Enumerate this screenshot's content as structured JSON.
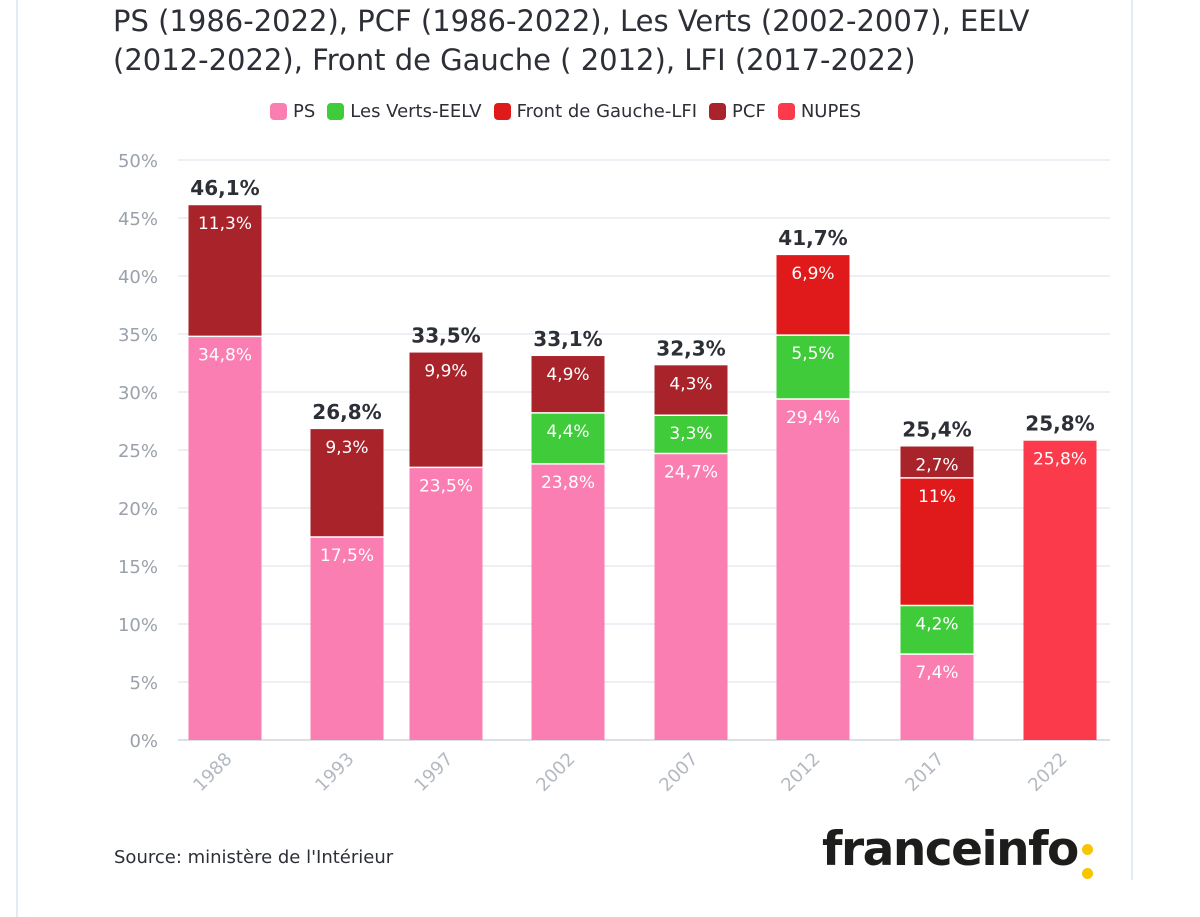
{
  "title": "PS (1986-2022), PCF (1986-2022), Les Verts (2002-2007), EELV (2012-2022), Front de Gauche ( 2012), LFI (2017-2022)",
  "source": "Source: ministère de l'Intérieur",
  "brand": "franceinfo",
  "chart_data": {
    "type": "stacked-bar",
    "title": "PS (1986-2022), PCF (1986-2022), Les Verts (2002-2007), EELV (2012-2022), Front de Gauche ( 2012), LFI (2017-2022)",
    "categories": [
      "1988",
      "1993",
      "1997",
      "2002",
      "2007",
      "2012",
      "2017",
      "2022"
    ],
    "ylim": [
      0,
      50
    ],
    "yticks": [
      0,
      5,
      10,
      15,
      20,
      25,
      30,
      35,
      40,
      45,
      50
    ],
    "ytick_labels": [
      "0%",
      "5%",
      "10%",
      "15%",
      "20%",
      "25%",
      "30%",
      "35%",
      "40%",
      "45%",
      "50%"
    ],
    "grid": true,
    "legend_position": "top-center",
    "series": [
      {
        "name": "PS",
        "color": "#fb7eb2",
        "values": [
          34.8,
          17.5,
          23.5,
          23.8,
          24.7,
          29.4,
          7.4,
          null
        ],
        "labels": [
          "34,8%",
          "17,5%",
          "23,5%",
          "23,8%",
          "24,7%",
          "29,4%",
          "7,4%",
          null
        ]
      },
      {
        "name": "Les Verts-EELV",
        "color": "#3fcb3a",
        "values": [
          null,
          null,
          null,
          4.4,
          3.3,
          5.5,
          4.2,
          null
        ],
        "labels": [
          null,
          null,
          null,
          "4,4%",
          "3,3%",
          "5,5%",
          "4,2%",
          null
        ]
      },
      {
        "name": "Front de Gauche-LFI",
        "color": "#e01a1a",
        "values": [
          null,
          null,
          null,
          null,
          null,
          6.9,
          11,
          null
        ],
        "labels": [
          null,
          null,
          null,
          null,
          null,
          "6,9%",
          "11%",
          null
        ]
      },
      {
        "name": "PCF",
        "color": "#a8232a",
        "values": [
          11.3,
          9.3,
          9.9,
          4.9,
          4.3,
          null,
          2.7,
          null
        ],
        "labels": [
          "11,3%",
          "9,3%",
          "9,9%",
          "4,9%",
          "4,3%",
          null,
          "2,7%",
          null
        ]
      },
      {
        "name": "NUPES",
        "color": "#fb3a4c",
        "values": [
          null,
          null,
          null,
          null,
          null,
          null,
          null,
          25.8
        ],
        "labels": [
          null,
          null,
          null,
          null,
          null,
          null,
          null,
          "25,8%"
        ]
      }
    ],
    "totals": [
      "46,1%",
      "26,8%",
      "33,5%",
      "33,1%",
      "32,3%",
      "41,7%",
      "25,4%",
      "25,8%"
    ]
  }
}
